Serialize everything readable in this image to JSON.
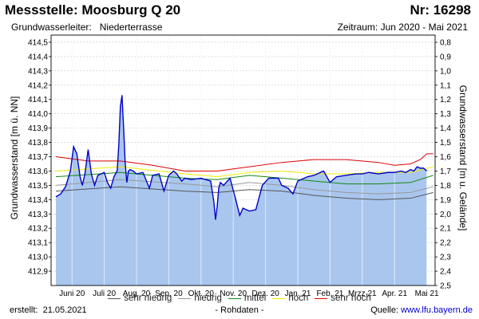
{
  "header": {
    "title": "Messstelle: Moosburg Q 20",
    "number": "Nr: 16298",
    "aquifer_label": "Grundwasserleiter:",
    "aquifer_value": "Niederterrasse",
    "period": "Zeitraum: Jun 2020 - Mai 2021"
  },
  "footer": {
    "created_label": "erstellt:",
    "created_date": "21.05.2021",
    "note": "- Rohdaten -",
    "source_label": "Quelle:",
    "source_link": "www.lfu.bayern.de"
  },
  "colors": {
    "area_fill": "#a9c6ee",
    "measured_line": "#0000c8",
    "sehr_niedrig": "#555555",
    "niedrig": "#999999",
    "mittel": "#118811",
    "hoch": "#eeee00",
    "sehr_hoch": "#dd0000",
    "grid": "#c8c8c8"
  },
  "chart_data": {
    "type": "line",
    "ylabel": "Grundwasserstand [m ü. NN]",
    "y2label": "Grundwasserstand [m u. Gelände]",
    "ylim": [
      412.8,
      414.55
    ],
    "y2lim": [
      2.5,
      0.75
    ],
    "y_ticks": [
      "412,9",
      "413,0",
      "413,1",
      "413,2",
      "413,3",
      "413,4",
      "413,5",
      "413,6",
      "413,7",
      "413,8",
      "413,9",
      "414,0",
      "414,1",
      "414,2",
      "414,3",
      "414,4",
      "414,5"
    ],
    "y2_ticks": [
      "0,8",
      "0,9",
      "1,0",
      "1,1",
      "1,2",
      "1,3",
      "1,4",
      "1,5",
      "1,6",
      "1,7",
      "1,8",
      "1,9",
      "2,0",
      "2,1",
      "2,2",
      "2,3",
      "2,4",
      "2,5"
    ],
    "x_range_months": [
      0,
      11.7
    ],
    "categories": [
      "Juni 20",
      "Juli 20",
      "Aug. 20",
      "Sep. 20",
      "Okt. 20",
      "Nov. 20",
      "Dez. 20",
      "Jan. 21",
      "Feb. 21",
      "Mrzz 21",
      "Apr. 21",
      "Mai 21"
    ],
    "grid": true,
    "legend_position": "bottom",
    "series": [
      {
        "name": "sehr niedrig",
        "style": "reference",
        "x": [
          0,
          2,
          4,
          5,
          6,
          7,
          8,
          9,
          10,
          11,
          11.7
        ],
        "y": [
          413.46,
          413.49,
          413.46,
          413.45,
          413.47,
          413.46,
          413.43,
          413.41,
          413.4,
          413.41,
          413.45
        ]
      },
      {
        "name": "niedrig",
        "style": "reference",
        "x": [
          0,
          2,
          4,
          5,
          6,
          7,
          8,
          9,
          10,
          11,
          11.7
        ],
        "y": [
          413.5,
          413.54,
          413.51,
          413.49,
          413.52,
          413.5,
          413.47,
          413.45,
          413.44,
          413.45,
          413.49
        ]
      },
      {
        "name": "mittel",
        "style": "reference",
        "x": [
          0,
          2,
          4,
          5,
          6,
          7,
          8,
          9,
          10,
          11,
          11.7
        ],
        "y": [
          413.56,
          413.59,
          413.55,
          413.54,
          413.57,
          413.55,
          413.53,
          413.51,
          413.51,
          413.52,
          413.57
        ]
      },
      {
        "name": "hoch",
        "style": "reference",
        "x": [
          0,
          2,
          4,
          5,
          6,
          7,
          8,
          9,
          10,
          11,
          11.7
        ],
        "y": [
          413.6,
          413.63,
          413.58,
          413.56,
          413.59,
          413.6,
          413.58,
          413.58,
          413.59,
          413.59,
          413.63
        ]
      },
      {
        "name": "sehr hoch",
        "style": "reference",
        "x": [
          0,
          1,
          2,
          3,
          4,
          5,
          6,
          7,
          8,
          9,
          10,
          10.5,
          11,
          11.3,
          11.5,
          11.7
        ],
        "y": [
          413.7,
          413.67,
          413.67,
          413.64,
          413.6,
          413.6,
          413.63,
          413.66,
          413.68,
          413.68,
          413.66,
          413.64,
          413.65,
          413.68,
          413.72,
          413.72
        ]
      },
      {
        "name": "Messwerte",
        "style": "measured",
        "x": [
          0,
          0.15,
          0.3,
          0.45,
          0.55,
          0.65,
          0.75,
          0.82,
          0.9,
          1.0,
          1.1,
          1.2,
          1.3,
          1.4,
          1.5,
          1.6,
          1.7,
          1.8,
          1.9,
          1.95,
          2.0,
          2.05,
          2.1,
          2.15,
          2.2,
          2.25,
          2.3,
          2.4,
          2.5,
          2.7,
          2.9,
          3.0,
          3.2,
          3.35,
          3.5,
          3.65,
          3.75,
          3.9,
          4.0,
          4.2,
          4.5,
          4.8,
          4.9,
          4.95,
          5.0,
          5.05,
          5.1,
          5.2,
          5.4,
          5.6,
          5.7,
          5.8,
          6.0,
          6.2,
          6.4,
          6.6,
          6.9,
          7.0,
          7.2,
          7.35,
          7.5,
          7.8,
          8.0,
          8.3,
          8.5,
          8.7,
          9.0,
          9.3,
          9.5,
          9.7,
          10.0,
          10.3,
          10.5,
          10.7,
          10.85,
          11.0,
          11.1,
          11.2,
          11.3,
          11.4,
          11.5
        ],
        "y": [
          413.42,
          413.44,
          413.49,
          413.6,
          413.77,
          413.72,
          413.56,
          413.5,
          413.58,
          413.75,
          413.58,
          413.5,
          413.57,
          413.58,
          413.59,
          413.52,
          413.48,
          413.56,
          413.6,
          413.78,
          414.05,
          414.13,
          413.9,
          413.65,
          413.52,
          413.6,
          413.61,
          413.6,
          413.58,
          413.59,
          413.48,
          413.57,
          413.58,
          413.46,
          413.57,
          413.6,
          413.58,
          413.53,
          413.55,
          413.54,
          413.55,
          413.53,
          413.38,
          413.26,
          413.35,
          413.48,
          413.52,
          413.5,
          413.55,
          413.38,
          413.29,
          413.34,
          413.32,
          413.33,
          413.5,
          413.55,
          413.55,
          413.5,
          413.48,
          413.44,
          413.53,
          413.56,
          413.57,
          413.6,
          413.52,
          413.56,
          413.57,
          413.58,
          413.58,
          413.59,
          413.58,
          413.59,
          413.59,
          413.6,
          413.59,
          413.61,
          413.6,
          413.63,
          413.62,
          413.62,
          413.6
        ]
      }
    ]
  },
  "legend": [
    {
      "name": "sehr niedrig",
      "color": "#555555"
    },
    {
      "name": "niedrig",
      "color": "#999999"
    },
    {
      "name": "mittel",
      "color": "#118811"
    },
    {
      "name": "hoch",
      "color": "#eeee00"
    },
    {
      "name": "sehr hoch",
      "color": "#dd0000"
    }
  ]
}
